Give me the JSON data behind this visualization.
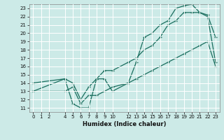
{
  "xlabel": "Humidex (Indice chaleur)",
  "bg_color": "#cceae7",
  "grid_color": "#ffffff",
  "line_color": "#1a6e5e",
  "xlim": [
    -0.5,
    23.5
  ],
  "ylim": [
    10.5,
    23.5
  ],
  "xticks": [
    0,
    1,
    2,
    4,
    5,
    6,
    7,
    8,
    9,
    10,
    12,
    13,
    14,
    15,
    16,
    17,
    18,
    19,
    20,
    21,
    22,
    23
  ],
  "yticks": [
    11,
    12,
    13,
    14,
    15,
    16,
    17,
    18,
    19,
    20,
    21,
    22,
    23
  ],
  "line1_x": [
    0,
    4,
    5,
    6,
    7,
    8,
    9,
    10,
    12,
    13,
    14,
    15,
    16,
    17,
    18,
    19,
    20,
    21,
    22,
    23
  ],
  "line1_y": [
    13.0,
    14.5,
    11.5,
    11.0,
    11.0,
    14.5,
    14.5,
    13.0,
    14.0,
    16.5,
    19.5,
    20.0,
    21.0,
    21.5,
    23.0,
    23.3,
    23.5,
    22.5,
    22.2,
    19.5
  ],
  "line2_x": [
    0,
    4,
    5,
    6,
    7,
    8,
    9,
    10,
    12,
    13,
    14,
    15,
    16,
    17,
    18,
    19,
    20,
    21,
    22,
    23
  ],
  "line2_y": [
    14.0,
    14.5,
    14.0,
    12.0,
    13.5,
    14.5,
    15.5,
    15.5,
    16.5,
    17.0,
    18.0,
    18.5,
    19.5,
    21.0,
    21.5,
    22.5,
    22.5,
    22.5,
    22.0,
    16.5
  ],
  "line3_x": [
    0,
    4,
    5,
    6,
    7,
    8,
    9,
    10,
    12,
    13,
    14,
    15,
    16,
    17,
    18,
    19,
    20,
    21,
    22,
    23
  ],
  "line3_y": [
    13.0,
    13.0,
    13.5,
    11.5,
    12.5,
    12.5,
    13.0,
    13.5,
    14.0,
    14.5,
    15.0,
    15.5,
    16.0,
    16.5,
    17.0,
    17.5,
    18.0,
    18.5,
    19.0,
    16.0
  ]
}
